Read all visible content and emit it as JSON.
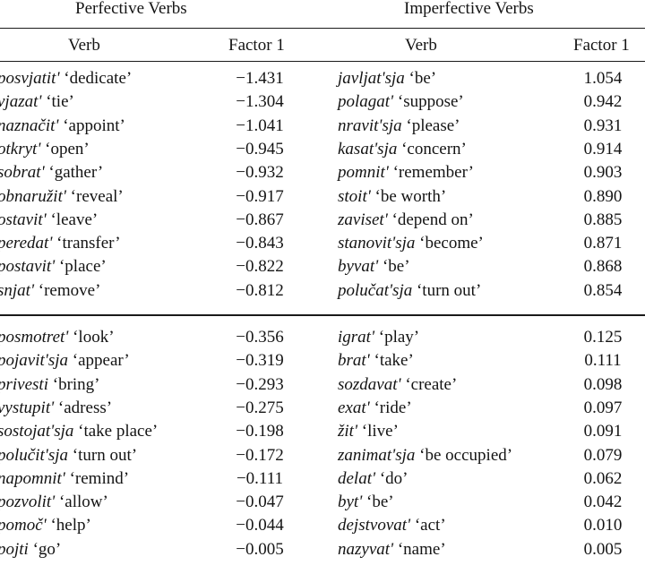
{
  "headers": {
    "perfective_title": "Perfective Verbs",
    "imperfective_title": "Imperfective Verbs",
    "verb_col": "Verb",
    "factor_col": "Factor 1"
  },
  "perfective_rows": [
    {
      "verb": "posvjatit'",
      "gloss": "‘dedicate’",
      "factor": "−1.431"
    },
    {
      "verb": "vjazat'",
      "gloss": "‘tie’",
      "factor": "−1.304"
    },
    {
      "verb": "naznačit'",
      "gloss": "‘appoint’",
      "factor": "−1.041"
    },
    {
      "verb": "otkryt'",
      "gloss": "‘open’",
      "factor": "−0.945"
    },
    {
      "verb": "sobrat'",
      "gloss": "‘gather’",
      "factor": "−0.932"
    },
    {
      "verb": "obnaružit'",
      "gloss": "‘reveal’",
      "factor": "−0.917"
    },
    {
      "verb": "ostavit'",
      "gloss": "‘leave’",
      "factor": "−0.867"
    },
    {
      "verb": "peredat'",
      "gloss": "‘transfer’",
      "factor": "−0.843"
    },
    {
      "verb": "postavit'",
      "gloss": "‘place’",
      "factor": "−0.822"
    },
    {
      "verb": "snjat'",
      "gloss": "‘remove’",
      "factor": "−0.812"
    },
    {
      "verb": "posmotret'",
      "gloss": "‘look’",
      "factor": "−0.356"
    },
    {
      "verb": "pojavit'sja",
      "gloss": "‘appear’",
      "factor": "−0.319"
    },
    {
      "verb": "privesti",
      "gloss": "‘bring’",
      "factor": "−0.293"
    },
    {
      "verb": "vystupit'",
      "gloss": "‘adress’",
      "factor": "−0.275"
    },
    {
      "verb": "sostojat'sja",
      "gloss": "‘take place’",
      "factor": "−0.198"
    },
    {
      "verb": "polučit'sja",
      "gloss": "‘turn out’",
      "factor": "−0.172"
    },
    {
      "verb": "napomnit'",
      "gloss": "‘remind’",
      "factor": "−0.111"
    },
    {
      "verb": "pozvolit'",
      "gloss": "‘allow’",
      "factor": "−0.047"
    },
    {
      "verb": "pomoč'",
      "gloss": "‘help’",
      "factor": "−0.044"
    },
    {
      "verb": "pojti",
      "gloss": "‘go’",
      "factor": "−0.005"
    }
  ],
  "imperfective_rows": [
    {
      "verb": "javljat'sja",
      "gloss": "‘be’",
      "factor": "1.054"
    },
    {
      "verb": "polagat'",
      "gloss": "‘suppose’",
      "factor": "0.942"
    },
    {
      "verb": "nravit'sja",
      "gloss": "‘please’",
      "factor": "0.931"
    },
    {
      "verb": "kasat'sja",
      "gloss": "‘concern’",
      "factor": "0.914"
    },
    {
      "verb": "pomnit'",
      "gloss": "‘remember’",
      "factor": "0.903"
    },
    {
      "verb": "stoit'",
      "gloss": "‘be worth’",
      "factor": "0.890"
    },
    {
      "verb": "zaviset'",
      "gloss": "‘depend on’",
      "factor": "0.885"
    },
    {
      "verb": "stanovit'sja",
      "gloss": "‘become’",
      "factor": "0.871"
    },
    {
      "verb": "byvat'",
      "gloss": "‘be’",
      "factor": "0.868"
    },
    {
      "verb": "polučat'sja",
      "gloss": "‘turn out’",
      "factor": "0.854"
    },
    {
      "verb": "igrat'",
      "gloss": "‘play’",
      "factor": "0.125"
    },
    {
      "verb": "brat'",
      "gloss": "‘take’",
      "factor": "0.111"
    },
    {
      "verb": "sozdavat'",
      "gloss": "‘create’",
      "factor": "0.098"
    },
    {
      "verb": "exat'",
      "gloss": "‘ride’",
      "factor": "0.097"
    },
    {
      "verb": "žit'",
      "gloss": "‘live’",
      "factor": "0.091"
    },
    {
      "verb": "zanimat'sja",
      "gloss": "‘be occupied’",
      "factor": "0.079"
    },
    {
      "verb": "delat'",
      "gloss": "‘do’",
      "factor": "0.062"
    },
    {
      "verb": "byt'",
      "gloss": "‘be’",
      "factor": "0.042"
    },
    {
      "verb": "dejstvovat'",
      "gloss": "‘act’",
      "factor": "0.010"
    },
    {
      "verb": "nazyvat'",
      "gloss": "‘name’",
      "factor": "0.005"
    }
  ]
}
